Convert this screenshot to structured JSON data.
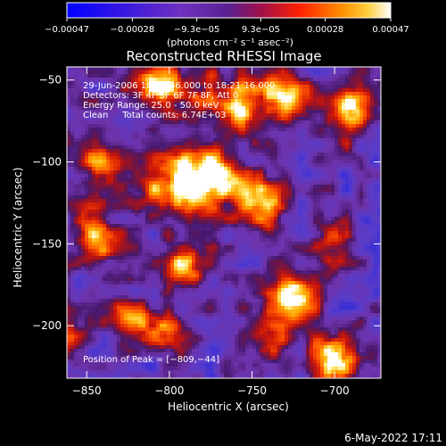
{
  "chart_data": {
    "type": "heatmap",
    "title": "Reconstructed RHESSI Image",
    "xlabel": "Heliocentric X (arcsec)",
    "ylabel": "Heliocentric Y (arcsec)",
    "xlim": [
      -862,
      -672
    ],
    "ylim": [
      -232,
      -42
    ],
    "xticks": [
      -850,
      -800,
      -750,
      -700
    ],
    "yticks": [
      -50,
      -100,
      -150,
      -200
    ],
    "xtick_labels": [
      "−850",
      "−800",
      "−750",
      "−700"
    ],
    "ytick_labels": [
      "−50",
      "−100",
      "−150",
      "−200"
    ],
    "colorbar": {
      "range": [
        -0.00047,
        0.00047
      ],
      "ticks": [
        -0.00047,
        -0.00028,
        -9.3e-05,
        9.3e-05,
        0.00028,
        0.00047
      ],
      "tick_labels": [
        "−0.00047",
        "−0.00028",
        "−9.3e−05",
        "9.3e−05",
        "0.00028",
        "0.00047"
      ],
      "unit_label": "(photons cm⁻² s⁻¹ asec⁻²)"
    },
    "annotations": [
      "29-Jun-2006 18:17:36.000 to 18:21:16.000",
      "Detectors: 3F 4F 5F 6F 7F 8F, Att 0",
      "Energy Range: 25.0 - 50.0 keV",
      "Clean     Total counts: 6.74E+03"
    ],
    "peak_label": "Position of Peak = [−809,−44]",
    "peak": [
      -809,
      -44
    ],
    "sources": [
      {
        "x": -790,
        "y": -115,
        "sx": 18,
        "sy": 14,
        "a": 1.0
      },
      {
        "x": -805,
        "y": -55,
        "sx": 16,
        "sy": 10,
        "a": 0.95
      },
      {
        "x": -760,
        "y": -65,
        "sx": 12,
        "sy": 12,
        "a": 0.85
      },
      {
        "x": -730,
        "y": -60,
        "sx": 10,
        "sy": 10,
        "a": 0.8
      },
      {
        "x": -690,
        "y": -65,
        "sx": 8,
        "sy": 14,
        "a": 0.7
      },
      {
        "x": -775,
        "y": -105,
        "sx": 10,
        "sy": 10,
        "a": 0.8
      },
      {
        "x": -745,
        "y": -125,
        "sx": 10,
        "sy": 12,
        "a": 0.75
      },
      {
        "x": -840,
        "y": -100,
        "sx": 12,
        "sy": 10,
        "a": 0.7
      },
      {
        "x": -845,
        "y": -145,
        "sx": 10,
        "sy": 12,
        "a": 0.7
      },
      {
        "x": -790,
        "y": -163,
        "sx": 8,
        "sy": 8,
        "a": 0.95
      },
      {
        "x": -725,
        "y": -183,
        "sx": 10,
        "sy": 10,
        "a": 0.85
      },
      {
        "x": -700,
        "y": -220,
        "sx": 12,
        "sy": 10,
        "a": 0.95
      },
      {
        "x": -820,
        "y": -195,
        "sx": 10,
        "sy": 10,
        "a": 0.65
      },
      {
        "x": -800,
        "y": -205,
        "sx": 8,
        "sy": 8,
        "a": 0.55
      },
      {
        "x": -740,
        "y": -205,
        "sx": 8,
        "sy": 10,
        "a": 0.55
      },
      {
        "x": -700,
        "y": -150,
        "sx": 8,
        "sy": 10,
        "a": 0.55
      },
      {
        "x": -860,
        "y": -205,
        "sx": 8,
        "sy": 10,
        "a": 0.55
      }
    ],
    "colors": [
      "#0000ff",
      "#7030c0",
      "#6a2aa8",
      "#8a1a4a",
      "#c81010",
      "#ff5500",
      "#ffa000",
      "#ffffff"
    ]
  },
  "footer": {
    "date": "6-May-2022 17:11"
  }
}
